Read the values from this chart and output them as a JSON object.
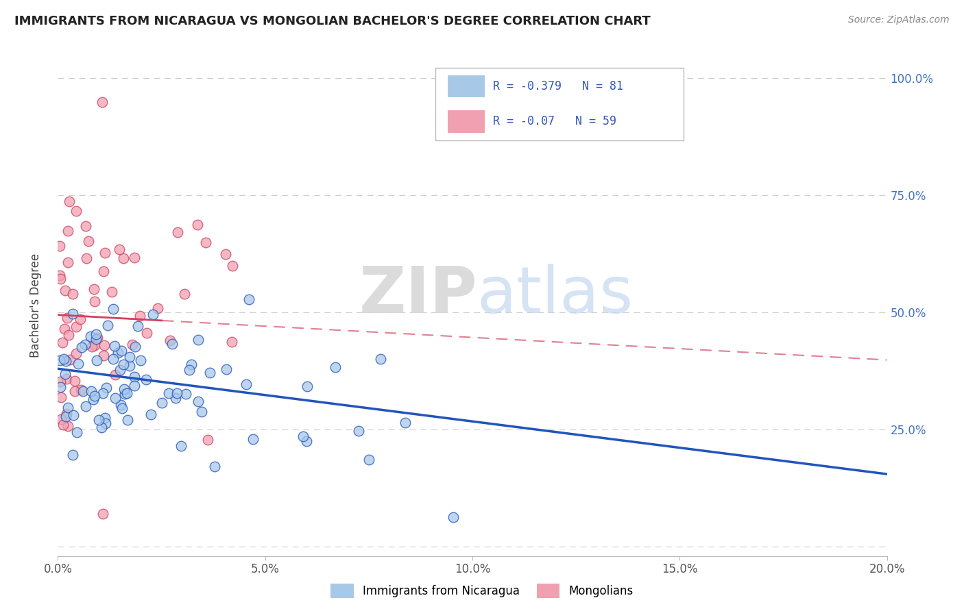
{
  "title": "IMMIGRANTS FROM NICARAGUA VS MONGOLIAN BACHELOR'S DEGREE CORRELATION CHART",
  "source": "Source: ZipAtlas.com",
  "ylabel": "Bachelor's Degree",
  "legend_labels": [
    "Immigrants from Nicaragua",
    "Mongolians"
  ],
  "blue_r": -0.379,
  "blue_n": 81,
  "pink_r": -0.07,
  "pink_n": 59,
  "xlim": [
    0.0,
    0.2
  ],
  "ylim": [
    -0.02,
    1.05
  ],
  "yticks": [
    0.0,
    0.25,
    0.5,
    0.75,
    1.0
  ],
  "ytick_labels": [
    "",
    "25.0%",
    "50.0%",
    "75.0%",
    "100.0%"
  ],
  "xticks": [
    0.0,
    0.05,
    0.1,
    0.15,
    0.2
  ],
  "xtick_labels": [
    "0.0%",
    "5.0%",
    "10.0%",
    "15.0%",
    "20.0%"
  ],
  "blue_color": "#a8c8e8",
  "blue_line_color": "#2255bb",
  "pink_color": "#f0a0b0",
  "pink_line_color": "#d04060",
  "pink_dash_color": "#e08090"
}
